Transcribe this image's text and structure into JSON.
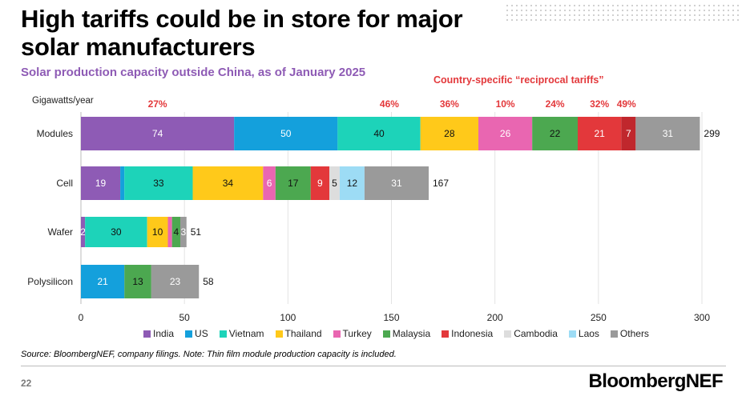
{
  "slide": {
    "title": "High tariffs could be in store for major solar manufacturers",
    "subtitle": "Solar production capacity outside China, as of January 2025",
    "tariff_title": "Country-specific “reciprocal tariffs”",
    "source": "Source: BloombergNEF, company filings. Note: Thin film module production capacity is included.",
    "page_number": "22",
    "logo": "BloombergNEF"
  },
  "chart_data": {
    "type": "bar",
    "orientation": "horizontal",
    "stacked": true,
    "unit_label": "Gigawatts/year",
    "categories": [
      "Modules",
      "Cell",
      "Wafer",
      "Polysilicon"
    ],
    "xlim": [
      0,
      300
    ],
    "xticks": [
      0,
      50,
      100,
      150,
      200,
      250,
      300
    ],
    "grid": "vertical",
    "legend_position": "bottom",
    "series": [
      {
        "name": "India",
        "color": "#8e5bb5",
        "values": [
          74,
          19,
          2,
          0
        ]
      },
      {
        "name": "US",
        "color": "#14a0dc",
        "values": [
          50,
          2,
          0,
          21
        ]
      },
      {
        "name": "Vietnam",
        "color": "#1dd3b9",
        "values": [
          40,
          33,
          30,
          0
        ]
      },
      {
        "name": "Thailand",
        "color": "#ffc91a",
        "values": [
          28,
          34,
          10,
          0
        ]
      },
      {
        "name": "Turkey",
        "color": "#e966b1",
        "values": [
          26,
          6,
          2,
          0
        ]
      },
      {
        "name": "Malaysia",
        "color": "#4ca850",
        "values": [
          22,
          17,
          4,
          13
        ]
      },
      {
        "name": "Indonesia",
        "color": "#e3383b",
        "values": [
          21,
          9,
          0,
          0
        ]
      },
      {
        "name": "Cambodia",
        "color": "#dddddd",
        "values": [
          7,
          5,
          0,
          0
        ]
      },
      {
        "name": "Laos",
        "color": "#9ddcf5",
        "values": [
          0,
          12,
          0,
          0
        ]
      },
      {
        "name": "Others",
        "color": "#9a9a9a",
        "values": [
          31,
          31,
          3,
          23
        ]
      }
    ],
    "labels": [
      [
        "74",
        "50",
        "40",
        "28",
        "26",
        "22",
        "21",
        "7",
        "",
        "31"
      ],
      [
        "19",
        "",
        "33",
        "34",
        "6",
        "17",
        "9",
        "5",
        "12",
        "31"
      ],
      [
        "2",
        "",
        "30",
        "10",
        "",
        "4",
        "",
        "",
        "",
        "3"
      ],
      [
        "",
        "21",
        "",
        "",
        "",
        "13",
        "",
        "",
        "",
        "23"
      ]
    ],
    "segment_overrides": [
      {
        "row": 0,
        "series": 6,
        "value": 21,
        "color": "#e3383b"
      },
      {
        "row": 0,
        "series": 7,
        "value": 7,
        "color": "#c0272d",
        "label_color": "#ffffff"
      }
    ],
    "totals": [
      "299",
      "167",
      "51",
      "58"
    ],
    "tariffs": [
      {
        "label": "27%",
        "x": 37
      },
      {
        "label": "46%",
        "x": 149
      },
      {
        "label": "36%",
        "x": 178
      },
      {
        "label": "10%",
        "x": 205
      },
      {
        "label": "24%",
        "x": 229
      },
      {
        "label": "32%",
        "x": 250.5
      },
      {
        "label": "49%",
        "x": 263.5
      }
    ]
  }
}
